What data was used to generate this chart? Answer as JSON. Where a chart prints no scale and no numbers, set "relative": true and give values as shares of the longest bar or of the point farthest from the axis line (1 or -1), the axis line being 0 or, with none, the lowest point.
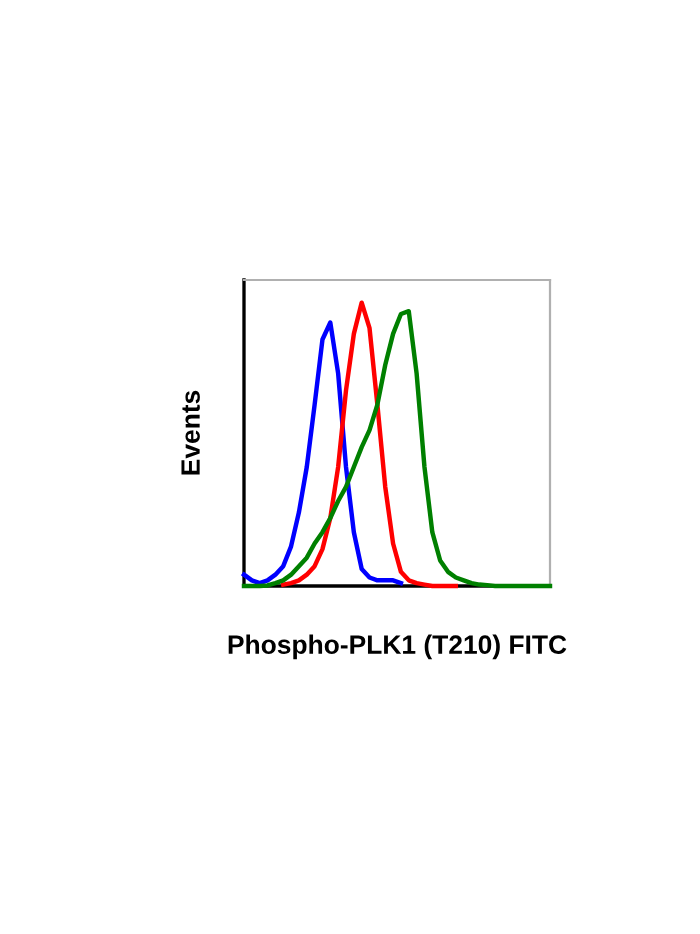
{
  "chart_data": {
    "type": "line",
    "relative": true,
    "xlabel": "Phospho-PLK1 (T210) FITC",
    "ylabel": "Events",
    "categories": [
      null,
      null,
      null,
      null,
      null,
      null,
      null,
      null,
      null,
      null,
      null,
      null,
      null,
      null,
      null,
      null,
      null,
      null,
      null,
      null,
      null,
      null,
      null,
      null,
      null,
      null,
      null,
      null,
      null,
      null,
      null,
      null,
      null,
      null,
      null,
      null,
      null,
      null,
      null,
      null
    ],
    "series": [
      {
        "color": "#0000ff",
        "values": [
          0.04,
          0.02,
          0.01,
          0.02,
          0.04,
          0.07,
          0.14,
          0.26,
          0.42,
          0.64,
          0.87,
          0.93,
          0.75,
          0.42,
          0.19,
          0.06,
          0.03,
          0.02,
          0.02,
          0.02,
          0.01,
          null,
          null,
          null,
          null,
          null,
          null,
          null,
          null,
          null,
          null,
          null,
          null,
          null,
          null,
          null,
          null,
          null,
          null,
          null
        ]
      },
      {
        "color": "#ff0000",
        "values": [
          null,
          null,
          null,
          null,
          null,
          0.005,
          0.01,
          0.02,
          0.04,
          0.07,
          0.13,
          0.24,
          0.42,
          0.69,
          0.89,
          1.0,
          0.91,
          0.64,
          0.35,
          0.15,
          0.05,
          0.02,
          0.01,
          0.005,
          0,
          0,
          0,
          0,
          null,
          null,
          null,
          null,
          null,
          null,
          null,
          null,
          null,
          null,
          null,
          null
        ]
      },
      {
        "color": "#008000",
        "values": [
          0,
          0,
          0,
          0.002,
          0.01,
          0.02,
          0.04,
          0.07,
          0.1,
          0.15,
          0.19,
          0.24,
          0.3,
          0.35,
          0.42,
          0.49,
          0.55,
          0.64,
          0.78,
          0.89,
          0.96,
          0.97,
          0.75,
          0.42,
          0.19,
          0.09,
          0.05,
          0.03,
          0.02,
          0.01,
          0.005,
          0.003,
          0,
          0,
          0,
          0,
          0,
          0,
          0,
          0
        ]
      }
    ],
    "grid": false,
    "legend": false
  }
}
